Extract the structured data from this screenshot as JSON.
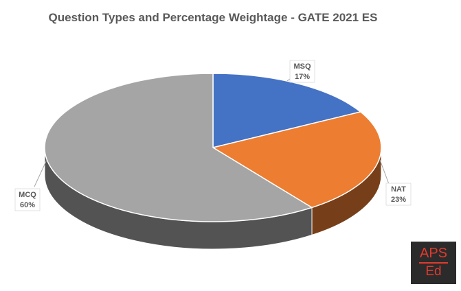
{
  "chart_data": {
    "type": "pie3d",
    "title": "Question Types and Percentage Weightage - GATE 2021 ES",
    "categories": [
      "MSQ",
      "NAT",
      "MCQ"
    ],
    "values": [
      17,
      23,
      60
    ],
    "value_labels": [
      "17%",
      "23%",
      "60%"
    ],
    "colors": [
      "#4472c4",
      "#ed7d31",
      "#a5a5a5"
    ]
  },
  "watermark": {
    "top": "APS",
    "bottom": "Ed"
  }
}
